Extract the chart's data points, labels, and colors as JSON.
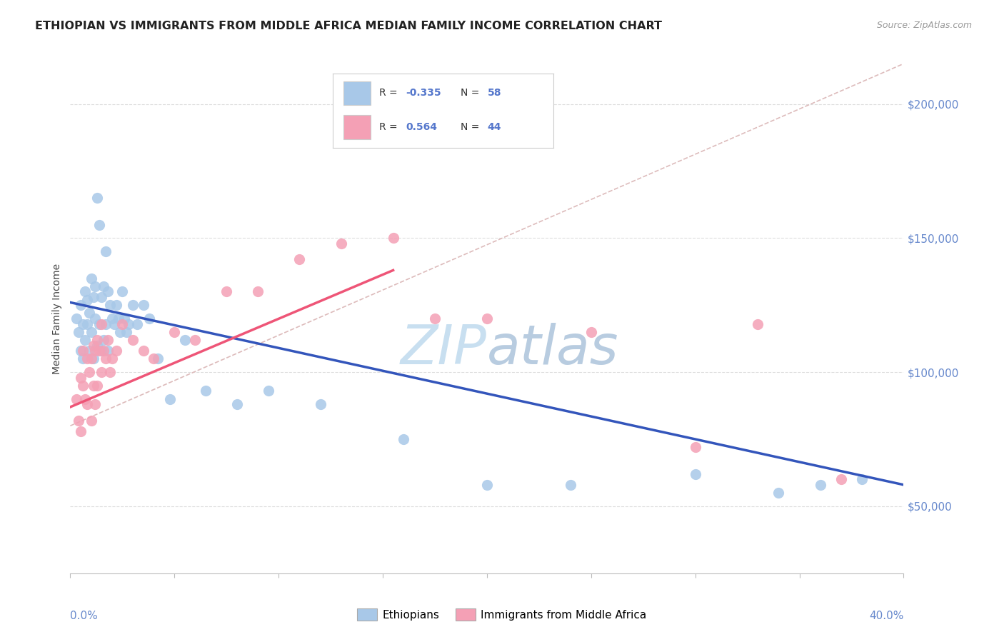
{
  "title": "ETHIOPIAN VS IMMIGRANTS FROM MIDDLE AFRICA MEDIAN FAMILY INCOME CORRELATION CHART",
  "source": "Source: ZipAtlas.com",
  "ylabel": "Median Family Income",
  "xmin": 0.0,
  "xmax": 0.4,
  "ymin": 25000,
  "ymax": 215000,
  "yticks": [
    50000,
    100000,
    150000,
    200000
  ],
  "ytick_labels": [
    "$50,000",
    "$100,000",
    "$150,000",
    "$200,000"
  ],
  "blue_color": "#a8c8e8",
  "pink_color": "#f4a0b5",
  "blue_line_color": "#3355bb",
  "pink_line_color": "#ee5577",
  "ref_line_color": "#ddbbbb",
  "grid_color": "#dddddd",
  "title_color": "#222222",
  "axis_label_color": "#6688cc",
  "legend_text_color": "#5577cc",
  "watermark_color": "#c8dff0",
  "blue_line_x0": 0.0,
  "blue_line_y0": 126000,
  "blue_line_x1": 0.4,
  "blue_line_y1": 58000,
  "pink_line_x0": 0.0,
  "pink_line_y0": 87000,
  "pink_line_x1": 0.155,
  "pink_line_y1": 138000,
  "ref_line_x0": 0.0,
  "ref_line_y0": 80000,
  "ref_line_x1": 0.4,
  "ref_line_y1": 215000,
  "blue_scatter_x": [
    0.003,
    0.004,
    0.005,
    0.005,
    0.006,
    0.006,
    0.007,
    0.007,
    0.008,
    0.008,
    0.009,
    0.009,
    0.01,
    0.01,
    0.011,
    0.011,
    0.012,
    0.012,
    0.013,
    0.013,
    0.014,
    0.014,
    0.015,
    0.015,
    0.016,
    0.016,
    0.017,
    0.017,
    0.018,
    0.018,
    0.019,
    0.02,
    0.021,
    0.022,
    0.023,
    0.024,
    0.025,
    0.026,
    0.027,
    0.028,
    0.03,
    0.032,
    0.035,
    0.038,
    0.042,
    0.048,
    0.055,
    0.065,
    0.08,
    0.095,
    0.12,
    0.16,
    0.2,
    0.24,
    0.3,
    0.34,
    0.36,
    0.38
  ],
  "blue_scatter_y": [
    120000,
    115000,
    125000,
    108000,
    118000,
    105000,
    130000,
    112000,
    127000,
    118000,
    122000,
    108000,
    135000,
    115000,
    128000,
    105000,
    132000,
    120000,
    165000,
    110000,
    155000,
    118000,
    128000,
    108000,
    132000,
    112000,
    145000,
    118000,
    130000,
    108000,
    125000,
    120000,
    118000,
    125000,
    120000,
    115000,
    130000,
    120000,
    115000,
    118000,
    125000,
    118000,
    125000,
    120000,
    105000,
    90000,
    112000,
    93000,
    88000,
    93000,
    88000,
    75000,
    58000,
    58000,
    62000,
    55000,
    58000,
    60000
  ],
  "pink_scatter_x": [
    0.003,
    0.004,
    0.005,
    0.005,
    0.006,
    0.006,
    0.007,
    0.008,
    0.008,
    0.009,
    0.01,
    0.01,
    0.011,
    0.011,
    0.012,
    0.012,
    0.013,
    0.013,
    0.014,
    0.015,
    0.015,
    0.016,
    0.017,
    0.018,
    0.019,
    0.02,
    0.022,
    0.025,
    0.03,
    0.035,
    0.04,
    0.05,
    0.06,
    0.075,
    0.09,
    0.11,
    0.13,
    0.155,
    0.175,
    0.2,
    0.25,
    0.3,
    0.33,
    0.37
  ],
  "pink_scatter_y": [
    90000,
    82000,
    98000,
    78000,
    95000,
    108000,
    90000,
    88000,
    105000,
    100000,
    105000,
    82000,
    110000,
    95000,
    108000,
    88000,
    112000,
    95000,
    108000,
    118000,
    100000,
    108000,
    105000,
    112000,
    100000,
    105000,
    108000,
    118000,
    112000,
    108000,
    105000,
    115000,
    112000,
    130000,
    130000,
    142000,
    148000,
    150000,
    120000,
    120000,
    115000,
    72000,
    118000,
    60000
  ]
}
